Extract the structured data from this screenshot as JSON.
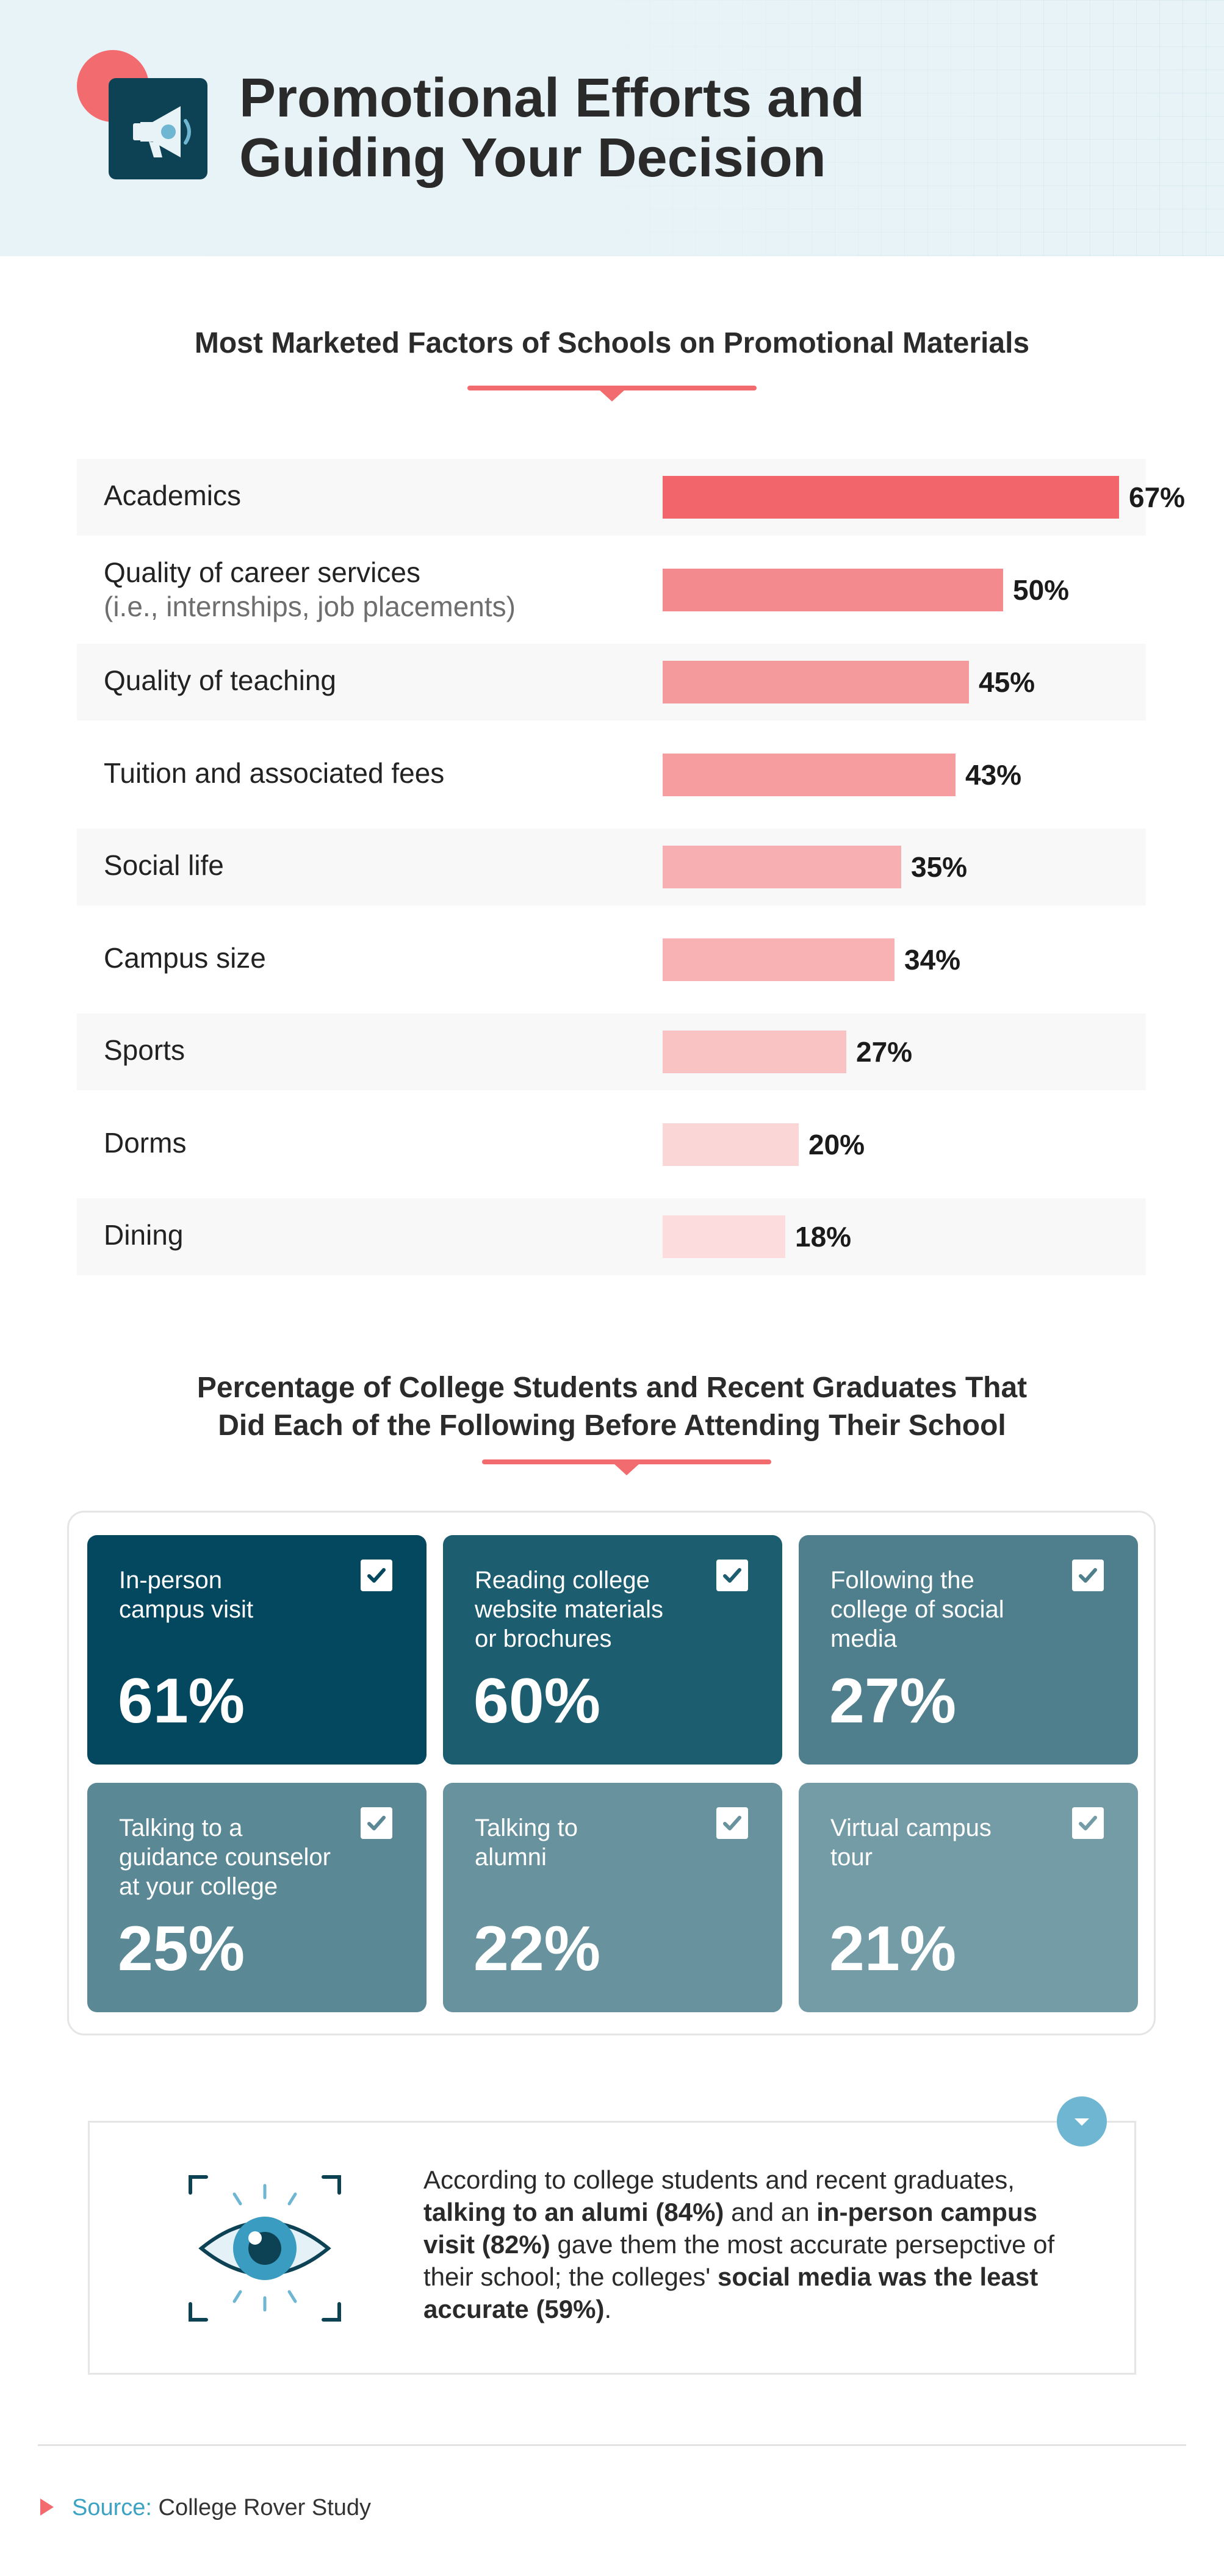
{
  "header": {
    "title_line1": "Promotional Efforts and",
    "title_line2": "Guiding Your Decision",
    "icon": "megaphone-icon"
  },
  "chart_data": {
    "type": "bar",
    "orientation": "horizontal",
    "title": "Most Marketed Factors of Schools on Promotional Materials",
    "categories": [
      {
        "label": "Academics",
        "sublabel": ""
      },
      {
        "label": "Quality of career services",
        "sublabel": "(i.e., internships, job placements)"
      },
      {
        "label": "Quality of teaching",
        "sublabel": ""
      },
      {
        "label": "Tuition and associated fees",
        "sublabel": ""
      },
      {
        "label": "Social life",
        "sublabel": ""
      },
      {
        "label": "Campus size",
        "sublabel": ""
      },
      {
        "label": "Sports",
        "sublabel": ""
      },
      {
        "label": "Dorms",
        "sublabel": ""
      },
      {
        "label": "Dining",
        "sublabel": ""
      }
    ],
    "values": [
      67,
      50,
      45,
      43,
      35,
      34,
      27,
      20,
      18
    ],
    "value_labels": [
      "67%",
      "50%",
      "45%",
      "43%",
      "35%",
      "34%",
      "27%",
      "20%",
      "18%"
    ],
    "unit": "%",
    "xlim": [
      0,
      67
    ],
    "colors": [
      "#f2666b",
      "#f38b8e",
      "#f59a9c",
      "#f59d9f",
      "#f7afb1",
      "#f8b2b3",
      "#f9c3c4",
      "#fbd6d6",
      "#fcdcdc"
    ],
    "grid": false
  },
  "actions_section": {
    "title_line1": "Percentage of College Students and Recent Graduates That",
    "title_line2": "Did Each of the Following Before Attending Their School",
    "cards": [
      {
        "lines": [
          "In-person",
          "campus visit"
        ],
        "value": "61%",
        "color": "#03485f"
      },
      {
        "lines": [
          "Reading college",
          "website materials",
          "or brochures"
        ],
        "value": "60%",
        "color": "#1c5d6f"
      },
      {
        "lines": [
          "Following the",
          "college of social",
          "media"
        ],
        "value": "27%",
        "color": "#4f7f8c"
      },
      {
        "lines": [
          "Talking to a",
          "guidance counselor",
          "at your college"
        ],
        "value": "25%",
        "color": "#5b8895"
      },
      {
        "lines": [
          "Talking to",
          "alumni"
        ],
        "value": "22%",
        "color": "#68929e"
      },
      {
        "lines": [
          "Virtual campus",
          "tour"
        ],
        "value": "21%",
        "color": "#749ca6"
      }
    ]
  },
  "insight": {
    "t1": "According to college students and recent graduates, ",
    "b1": "talking to an alumi (84%)",
    "t2": " and an ",
    "b2": "in-person campus visit (82%)",
    "t3": " gave them the most accurate persepctive of their school; the colleges' ",
    "b3": "social media was the least accurate (59%)",
    "t4": "."
  },
  "source": {
    "key": "Source:",
    "value": "College Rover Study"
  },
  "colors": {
    "accent": "#f26b6e",
    "navy": "#0d4254",
    "badge": "#6fb6d2"
  }
}
